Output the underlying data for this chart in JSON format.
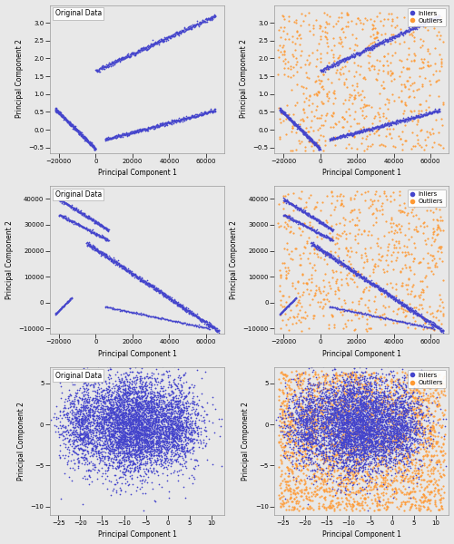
{
  "fig_width": 5.0,
  "fig_height": 6.0,
  "dpi": 100,
  "background_color": "#e8e8e8",
  "inlier_color": "#4444cc",
  "outlier_color": "#ff9933",
  "inlier_label": "Inliers",
  "outlier_label": "Outliers",
  "original_label": "Original Data",
  "xlabel": "Principal Component 1",
  "ylabel": "Principal Component 2",
  "plots": [
    {
      "row": 0,
      "col": 0,
      "xlim": [
        -25000,
        70000
      ],
      "ylim": [
        -0.65,
        3.5
      ],
      "xticks": [
        -20000,
        0,
        20000,
        40000,
        60000
      ],
      "yticks": [
        -0.5,
        0.0,
        0.5,
        1.0,
        1.5,
        2.0,
        2.5,
        3.0
      ],
      "show_legend": false,
      "show_original": true,
      "dataset": 1
    },
    {
      "row": 0,
      "col": 1,
      "xlim": [
        -25000,
        70000
      ],
      "ylim": [
        -0.65,
        3.5
      ],
      "xticks": [
        -20000,
        0,
        20000,
        40000,
        60000
      ],
      "yticks": [
        -0.5,
        0.0,
        0.5,
        1.0,
        1.5,
        2.0,
        2.5,
        3.0
      ],
      "show_legend": true,
      "show_original": false,
      "dataset": 1
    },
    {
      "row": 1,
      "col": 0,
      "xlim": [
        -25000,
        70000
      ],
      "ylim": [
        -12000,
        45000
      ],
      "xticks": [
        -20000,
        0,
        20000,
        40000,
        60000
      ],
      "yticks": [
        -10000,
        0,
        10000,
        20000,
        30000,
        40000
      ],
      "show_legend": false,
      "show_original": true,
      "dataset": 2
    },
    {
      "row": 1,
      "col": 1,
      "xlim": [
        -25000,
        70000
      ],
      "ylim": [
        -12000,
        45000
      ],
      "xticks": [
        -20000,
        0,
        20000,
        40000,
        60000
      ],
      "yticks": [
        -10000,
        0,
        10000,
        20000,
        30000,
        40000
      ],
      "show_legend": true,
      "show_original": false,
      "dataset": 2
    },
    {
      "row": 2,
      "col": 0,
      "xlim": [
        -27,
        13
      ],
      "ylim": [
        -11,
        7
      ],
      "xticks": [
        -25,
        -20,
        -15,
        -10,
        -5,
        0,
        5,
        10
      ],
      "yticks": [
        -10,
        -5,
        0,
        5
      ],
      "show_legend": false,
      "show_original": true,
      "dataset": 3
    },
    {
      "row": 2,
      "col": 1,
      "xlim": [
        -27,
        13
      ],
      "ylim": [
        -11,
        7
      ],
      "xticks": [
        -25,
        -20,
        -15,
        -10,
        -5,
        0,
        5,
        10
      ],
      "yticks": [
        -10,
        -5,
        0,
        5
      ],
      "show_legend": true,
      "show_original": false,
      "dataset": 3
    }
  ]
}
